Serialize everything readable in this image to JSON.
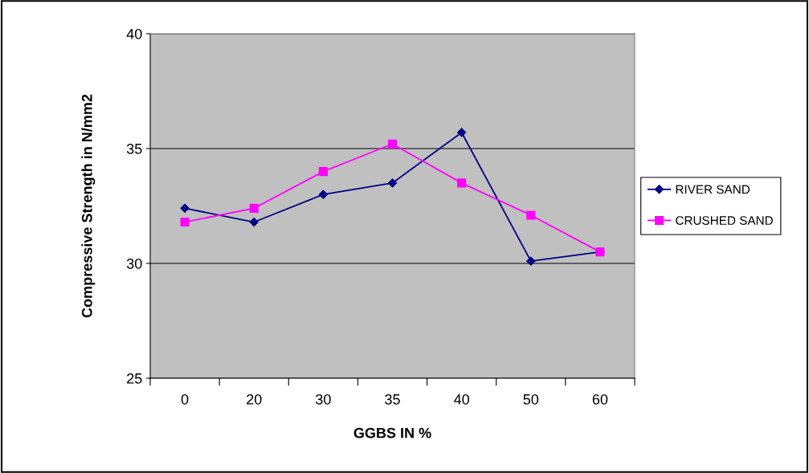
{
  "chart_data": {
    "type": "line",
    "xlabel": "GGBS IN %",
    "ylabel": "Compressive Strength in N/mm2",
    "categories": [
      "0",
      "20",
      "30",
      "35",
      "40",
      "50",
      "60"
    ],
    "series": [
      {
        "name": "RIVER SAND",
        "color": "#000080",
        "marker": "diamond",
        "values": [
          32.4,
          31.8,
          33.0,
          33.5,
          35.7,
          30.1,
          30.5
        ]
      },
      {
        "name": "CRUSHED SAND",
        "color": "#ff00ff",
        "marker": "square",
        "values": [
          31.8,
          32.4,
          34.0,
          35.2,
          33.5,
          32.1,
          30.5
        ]
      }
    ],
    "ylim": [
      25,
      40
    ],
    "yticks": [
      25,
      30,
      35,
      40
    ],
    "grid": "y",
    "legend": "right",
    "line_style": "solid"
  }
}
